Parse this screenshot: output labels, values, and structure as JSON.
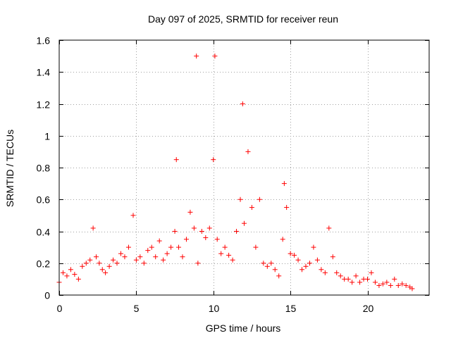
{
  "chart_data": {
    "type": "scatter",
    "title": "Day 097 of 2025, SRMTID for receiver reun",
    "xlabel": "GPS time / hours",
    "ylabel": "SRMTID / TECUs",
    "xlim": [
      0,
      24
    ],
    "ylim": [
      0,
      1.6
    ],
    "xticks": [
      0,
      5,
      10,
      15,
      20
    ],
    "xtick_labels": [
      "0",
      "5",
      "10",
      "15",
      "20"
    ],
    "yticks": [
      0,
      0.2,
      0.4,
      0.6,
      0.8,
      1.0,
      1.2,
      1.4,
      1.6
    ],
    "ytick_labels": [
      "0",
      "0.2",
      "0.4",
      "0.6",
      "0.8",
      "1",
      "1.2",
      "1.4",
      "1.6"
    ],
    "grid": true,
    "marker": "+",
    "color": "#ff0000",
    "series": [
      {
        "name": "SRMTID",
        "x": [
          0.0,
          0.25,
          0.5,
          0.75,
          1.0,
          1.25,
          1.5,
          1.75,
          2.0,
          2.2,
          2.4,
          2.6,
          2.8,
          3.0,
          3.25,
          3.5,
          3.75,
          4.0,
          4.25,
          4.5,
          4.8,
          5.0,
          5.25,
          5.5,
          5.75,
          6.0,
          6.25,
          6.5,
          6.75,
          7.0,
          7.25,
          7.5,
          7.6,
          7.75,
          8.0,
          8.25,
          8.5,
          8.75,
          8.9,
          9.0,
          9.25,
          9.5,
          9.75,
          10.0,
          10.1,
          10.25,
          10.5,
          10.75,
          11.0,
          11.25,
          11.5,
          11.75,
          11.9,
          12.0,
          12.25,
          12.5,
          12.75,
          13.0,
          13.25,
          13.5,
          13.75,
          14.0,
          14.25,
          14.5,
          14.6,
          14.75,
          15.0,
          15.25,
          15.5,
          15.75,
          16.0,
          16.25,
          16.5,
          16.75,
          17.0,
          17.25,
          17.5,
          17.75,
          18.0,
          18.25,
          18.5,
          18.75,
          19.0,
          19.25,
          19.5,
          19.75,
          20.0,
          20.25,
          20.5,
          20.75,
          21.0,
          21.25,
          21.5,
          21.75,
          22.0,
          22.25,
          22.5,
          22.75,
          22.9
        ],
        "y": [
          0.08,
          0.14,
          0.12,
          0.16,
          0.13,
          0.1,
          0.18,
          0.2,
          0.22,
          0.42,
          0.24,
          0.2,
          0.16,
          0.14,
          0.18,
          0.22,
          0.2,
          0.26,
          0.24,
          0.3,
          0.5,
          0.22,
          0.24,
          0.2,
          0.28,
          0.3,
          0.24,
          0.34,
          0.22,
          0.26,
          0.3,
          0.4,
          0.85,
          0.3,
          0.24,
          0.35,
          0.52,
          0.42,
          1.5,
          0.2,
          0.4,
          0.36,
          0.42,
          0.85,
          1.5,
          0.35,
          0.26,
          0.3,
          0.25,
          0.22,
          0.4,
          0.6,
          1.2,
          0.45,
          0.9,
          0.55,
          0.3,
          0.6,
          0.2,
          0.18,
          0.2,
          0.16,
          0.12,
          0.35,
          0.7,
          0.55,
          0.26,
          0.25,
          0.22,
          0.16,
          0.18,
          0.2,
          0.3,
          0.22,
          0.16,
          0.14,
          0.42,
          0.24,
          0.14,
          0.12,
          0.1,
          0.1,
          0.08,
          0.12,
          0.08,
          0.1,
          0.1,
          0.14,
          0.08,
          0.06,
          0.07,
          0.08,
          0.06,
          0.1,
          0.06,
          0.07,
          0.06,
          0.05,
          0.04
        ]
      }
    ]
  }
}
